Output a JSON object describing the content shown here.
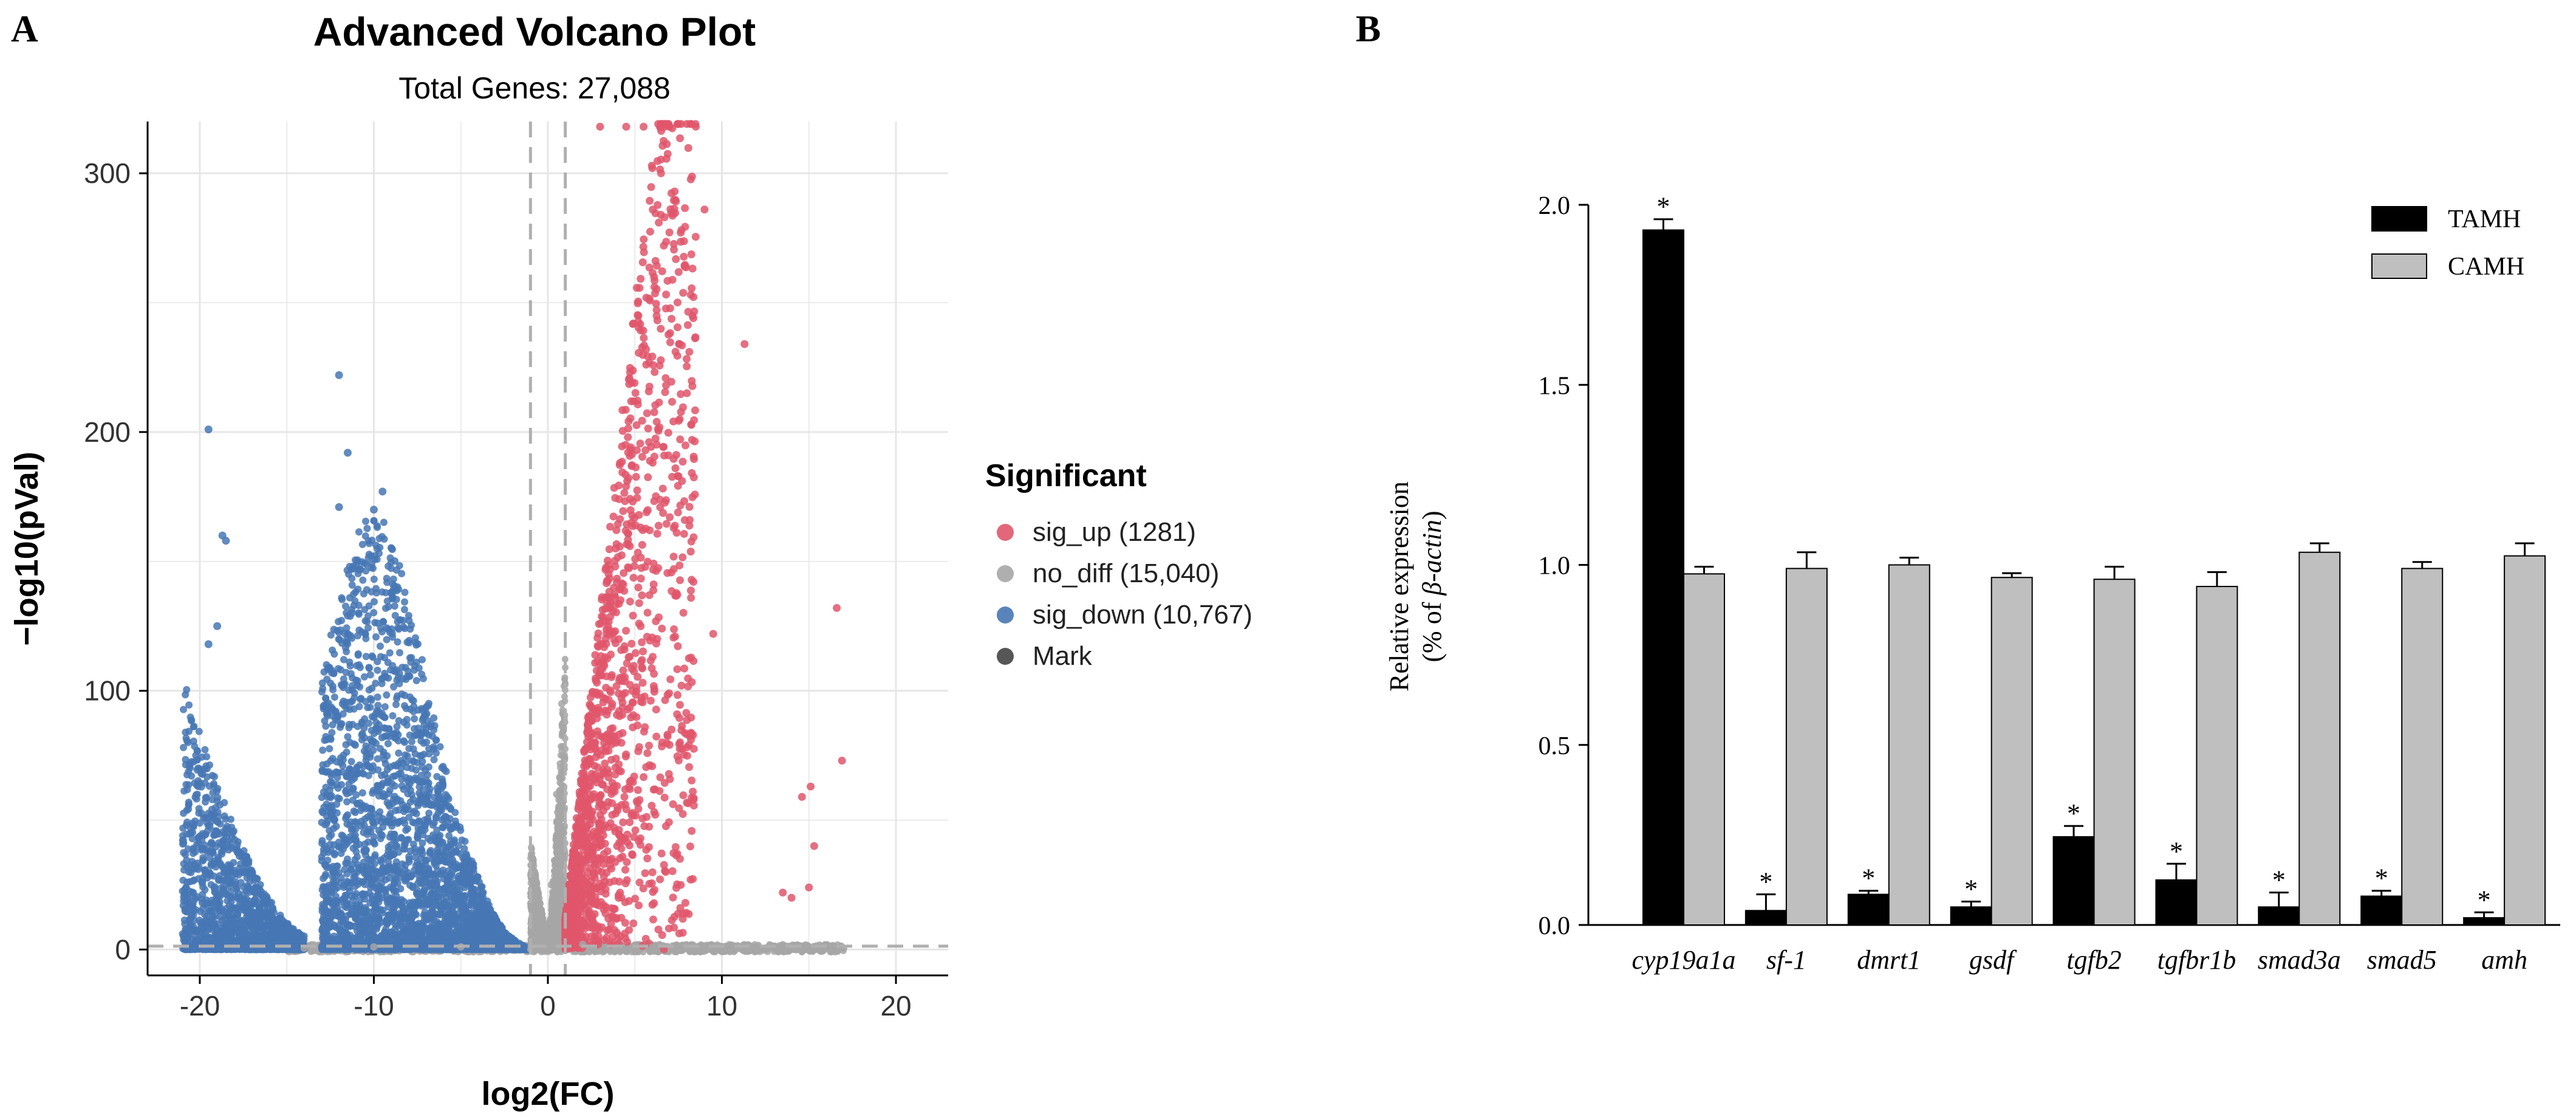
{
  "panel_labels": {
    "a": "A",
    "b": "B"
  },
  "chart_data": [
    {
      "type": "scatter",
      "title": "Advanced Volcano Plot",
      "subtitle": "Total Genes: 27,088",
      "xlabel": "log2(FC)",
      "ylabel": "−log10(pVal)",
      "xlim": [
        -23,
        23
      ],
      "ylim": [
        -10,
        320
      ],
      "x_ticks": [
        -20,
        -10,
        0,
        10,
        20
      ],
      "x_tick_labels": [
        "-20",
        "-10",
        "0",
        "10",
        "20"
      ],
      "y_ticks": [
        0,
        100,
        200,
        300
      ],
      "y_tick_labels": [
        "0",
        "100",
        "200",
        "300"
      ],
      "grid": true,
      "threshold_lines": {
        "x": [
          -1,
          1
        ],
        "y": 1.3
      },
      "legend": {
        "title": "Significant",
        "placement": "right",
        "entries": [
          {
            "label": "sig_up (1281)",
            "color": "#e0566b"
          },
          {
            "label": "no_diff (15,040)",
            "color": "#a6a6a6"
          },
          {
            "label": "sig_down (10,767)",
            "color": "#4777b4"
          },
          {
            "label": "Mark",
            "color": "#444444"
          }
        ]
      },
      "colors": {
        "sig_up": "#e0566b",
        "no_diff": "#a6a6a6",
        "sig_down": "#4777b4",
        "background": "#ffffff",
        "grid": "#e6e6e6"
      },
      "groups": {
        "sig_up": [
          [
            6.0,
            302
          ],
          [
            6.5,
            300
          ],
          [
            9,
            286
          ],
          [
            11.3,
            234
          ],
          [
            16.6,
            132
          ],
          [
            9.5,
            122
          ],
          [
            15.1,
            63
          ],
          [
            14.6,
            59
          ],
          [
            15.3,
            40
          ],
          [
            16.9,
            73
          ],
          [
            14,
            20
          ],
          [
            13.5,
            22
          ],
          [
            15,
            24
          ],
          [
            3,
            318
          ],
          [
            4.5,
            318
          ],
          [
            5.5,
            318
          ],
          [
            7,
            318
          ],
          [
            8.5,
            318
          ]
        ],
        "no_diff": [
          [
            0.2,
            25
          ],
          [
            0.5,
            60
          ],
          [
            -0.3,
            10
          ],
          [
            0.8,
            95
          ],
          [
            2,
            2
          ],
          [
            6,
            1
          ],
          [
            10,
            1
          ],
          [
            14,
            0.5
          ],
          [
            17,
            0.5
          ],
          [
            -14,
            0.5
          ],
          [
            -10,
            1
          ],
          [
            -5,
            1
          ]
        ],
        "sig_down": [
          [
            -19.5,
            201
          ],
          [
            -12,
            222
          ],
          [
            -11.5,
            192
          ],
          [
            -9.5,
            177
          ],
          [
            -18.7,
            160
          ],
          [
            -18.5,
            158
          ],
          [
            -19,
            125
          ],
          [
            -12,
            171
          ],
          [
            -10,
            170
          ],
          [
            -19.5,
            118
          ]
        ]
      },
      "clouds": {
        "sig_up": {
          "x_range": [
            1.0,
            8.5
          ],
          "core_slope": 60,
          "n": 1600
        },
        "no_diff": {
          "x_range": [
            -1.0,
            1.0
          ],
          "n": 1800
        },
        "no_diff_baseline": {
          "x_range": [
            -15,
            17
          ],
          "y_range": [
            -1,
            2
          ],
          "n": 1200
        },
        "sig_down": [
          {
            "x_range": [
              -21,
              -14
            ],
            "y_max": 100,
            "n": 1500
          },
          {
            "x_range": [
              -13,
              -1
            ],
            "y_max": 160,
            "n": 3500
          }
        ]
      }
    },
    {
      "type": "bar",
      "xlabel": "",
      "ylabel": "Relative expression",
      "ylabel_line2_prefix": "(% of ",
      "ylabel_line2_italic": "β-actin",
      "ylabel_line2_suffix": ")",
      "ylim": [
        0,
        2.0
      ],
      "y_ticks": [
        0.0,
        0.5,
        1.0,
        1.5,
        2.0
      ],
      "y_tick_labels": [
        "0.0",
        "0.5",
        "1.0",
        "1.5",
        "2.0"
      ],
      "grid": false,
      "categories": [
        "cyp19a1a",
        "sf-1",
        "dmrt1",
        "gsdf",
        "tgfb2",
        "tgfbr1b",
        "smad3a",
        "smad5",
        "amh"
      ],
      "series": [
        {
          "name": "TAMH",
          "color": "#000000",
          "values": [
            1.93,
            0.04,
            0.085,
            0.05,
            0.245,
            0.125,
            0.05,
            0.08,
            0.02
          ],
          "errors": [
            0.03,
            0.045,
            0.01,
            0.015,
            0.03,
            0.045,
            0.04,
            0.015,
            0.015
          ],
          "annotations": [
            "*",
            "*",
            "*",
            "*",
            "*",
            "*",
            "*",
            "*",
            "*"
          ]
        },
        {
          "name": "CAMH",
          "color": "#bfbfbf",
          "values": [
            0.975,
            0.99,
            1.0,
            0.965,
            0.96,
            0.94,
            1.035,
            0.99,
            1.025
          ],
          "errors": [
            0.02,
            0.045,
            0.02,
            0.012,
            0.035,
            0.04,
            0.025,
            0.018,
            0.035
          ],
          "annotations": [
            "",
            "",
            "",
            "",
            "",
            "",
            "",
            "",
            ""
          ]
        }
      ],
      "legend": {
        "placement": "top-right"
      }
    }
  ]
}
